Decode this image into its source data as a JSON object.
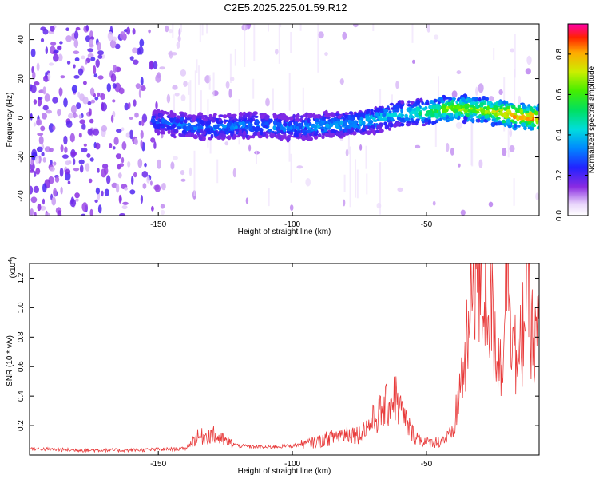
{
  "title": "C2E5.2025.225.01.59.R12",
  "chart_data": [
    {
      "type": "heatmap",
      "title": "",
      "xlabel": "Height of straight line (km)",
      "ylabel": "Frequency (Hz)",
      "xlim": [
        -198,
        -8
      ],
      "ylim": [
        -50,
        48
      ],
      "x_ticks": [
        "-150",
        "-100",
        "-50"
      ],
      "y_ticks": [
        "-40",
        "-20",
        "0",
        "20",
        "40"
      ],
      "colorbar": {
        "label": "Normalized spectral amplitude",
        "range": [
          0,
          0.95
        ],
        "ticks": [
          "0.0",
          "0.2",
          "0.4",
          "0.6",
          "0.8"
        ]
      },
      "ridge": {
        "x": [
          -150,
          -140,
          -130,
          -120,
          -110,
          -100,
          -90,
          -80,
          -70,
          -60,
          -50,
          -40,
          -30,
          -20,
          -10
        ],
        "y": [
          -2,
          -4,
          -5,
          -4,
          -4,
          -5,
          -4,
          -3,
          -1,
          2,
          3,
          5,
          4,
          2,
          0
        ],
        "peak_amplitude": [
          0.3,
          0.35,
          0.35,
          0.35,
          0.35,
          0.35,
          0.38,
          0.38,
          0.42,
          0.45,
          0.55,
          0.75,
          0.7,
          0.85,
          0.9
        ]
      }
    },
    {
      "type": "line",
      "title": "",
      "xlabel": "Height of straight line (km)",
      "ylabel": "SNR (10 * v/v)",
      "scale_label": "(x10",
      "scale_exp": "4",
      "scale_close": ")",
      "xlim": [
        -198,
        -8
      ],
      "ylim": [
        0,
        1.3
      ],
      "x_ticks": [
        "-150",
        "-100",
        "-50"
      ],
      "y_ticks": [
        "0.2",
        "0.4",
        "0.6",
        "0.8",
        "1.0",
        "1.2"
      ],
      "color": "#e83a3a",
      "series": [
        {
          "x": [
            -198,
            -180,
            -160,
            -140,
            -136,
            -130,
            -125,
            -120,
            -110,
            -100,
            -90,
            -80,
            -75,
            -70,
            -65,
            -62,
            -58,
            -55,
            -50,
            -45,
            -40,
            -38,
            -34,
            -32,
            -30,
            -28,
            -25,
            -22,
            -20,
            -18,
            -16,
            -14,
            -12,
            -10,
            -8
          ],
          "y": [
            0.03,
            0.02,
            0.02,
            0.03,
            0.1,
            0.12,
            0.08,
            0.05,
            0.04,
            0.05,
            0.08,
            0.13,
            0.12,
            0.2,
            0.28,
            0.35,
            0.2,
            0.12,
            0.07,
            0.08,
            0.12,
            0.35,
            0.7,
            1.2,
            0.9,
            1.0,
            0.75,
            0.5,
            1.25,
            0.8,
            0.45,
            0.75,
            1.1,
            0.55,
            0.8
          ]
        }
      ]
    }
  ]
}
